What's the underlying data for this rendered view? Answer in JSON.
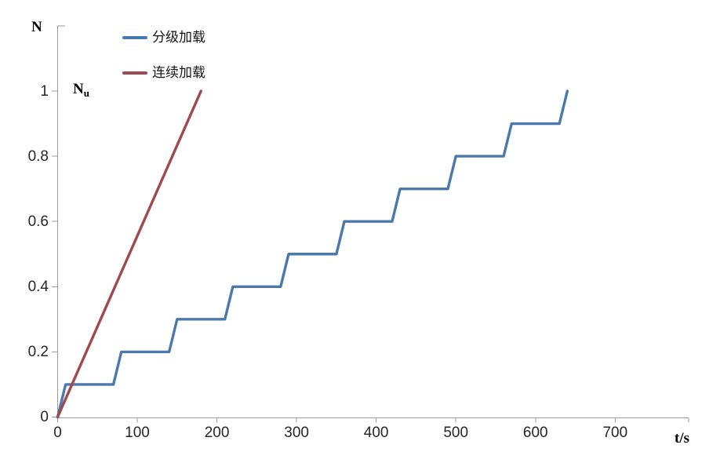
{
  "chart": {
    "y_axis_title": "N",
    "y_ref_label_base": "N",
    "y_ref_label_sub": "u",
    "x_axis_title": "t/s"
  },
  "legend": {
    "items": [
      {
        "label": "分级加载",
        "color": "#4c79ab"
      },
      {
        "label": "连续加载",
        "color": "#a14a4e"
      }
    ]
  },
  "chart_data": {
    "type": "line",
    "title": "",
    "xlabel": "t/s",
    "ylabel": "N",
    "xlim": [
      0,
      792
    ],
    "ylim": [
      0,
      1.2
    ],
    "x_ticks": [
      0,
      100,
      200,
      300,
      400,
      500,
      600,
      700
    ],
    "y_ticks": [
      0,
      0.2,
      0.4,
      0.6,
      0.8,
      1
    ],
    "grid": false,
    "legend_position": "top-left-inside",
    "annotations": [
      {
        "text": "Nu",
        "x": 0,
        "y": 1,
        "meaning": "ultimate load level at N = 1"
      }
    ],
    "series": [
      {
        "name": "分级加载",
        "color": "#4c79ab",
        "points": [
          [
            0,
            0
          ],
          [
            10,
            0.1
          ],
          [
            70,
            0.1
          ],
          [
            80,
            0.2
          ],
          [
            140,
            0.2
          ],
          [
            150,
            0.3
          ],
          [
            210,
            0.3
          ],
          [
            220,
            0.4
          ],
          [
            280,
            0.4
          ],
          [
            290,
            0.5
          ],
          [
            350,
            0.5
          ],
          [
            360,
            0.6
          ],
          [
            420,
            0.6
          ],
          [
            430,
            0.7
          ],
          [
            490,
            0.7
          ],
          [
            500,
            0.8
          ],
          [
            560,
            0.8
          ],
          [
            570,
            0.9
          ],
          [
            630,
            0.9
          ],
          [
            640,
            1.0
          ]
        ]
      },
      {
        "name": "连续加载",
        "color": "#a14a4e",
        "points": [
          [
            0,
            0
          ],
          [
            180,
            1.0
          ]
        ]
      }
    ]
  }
}
